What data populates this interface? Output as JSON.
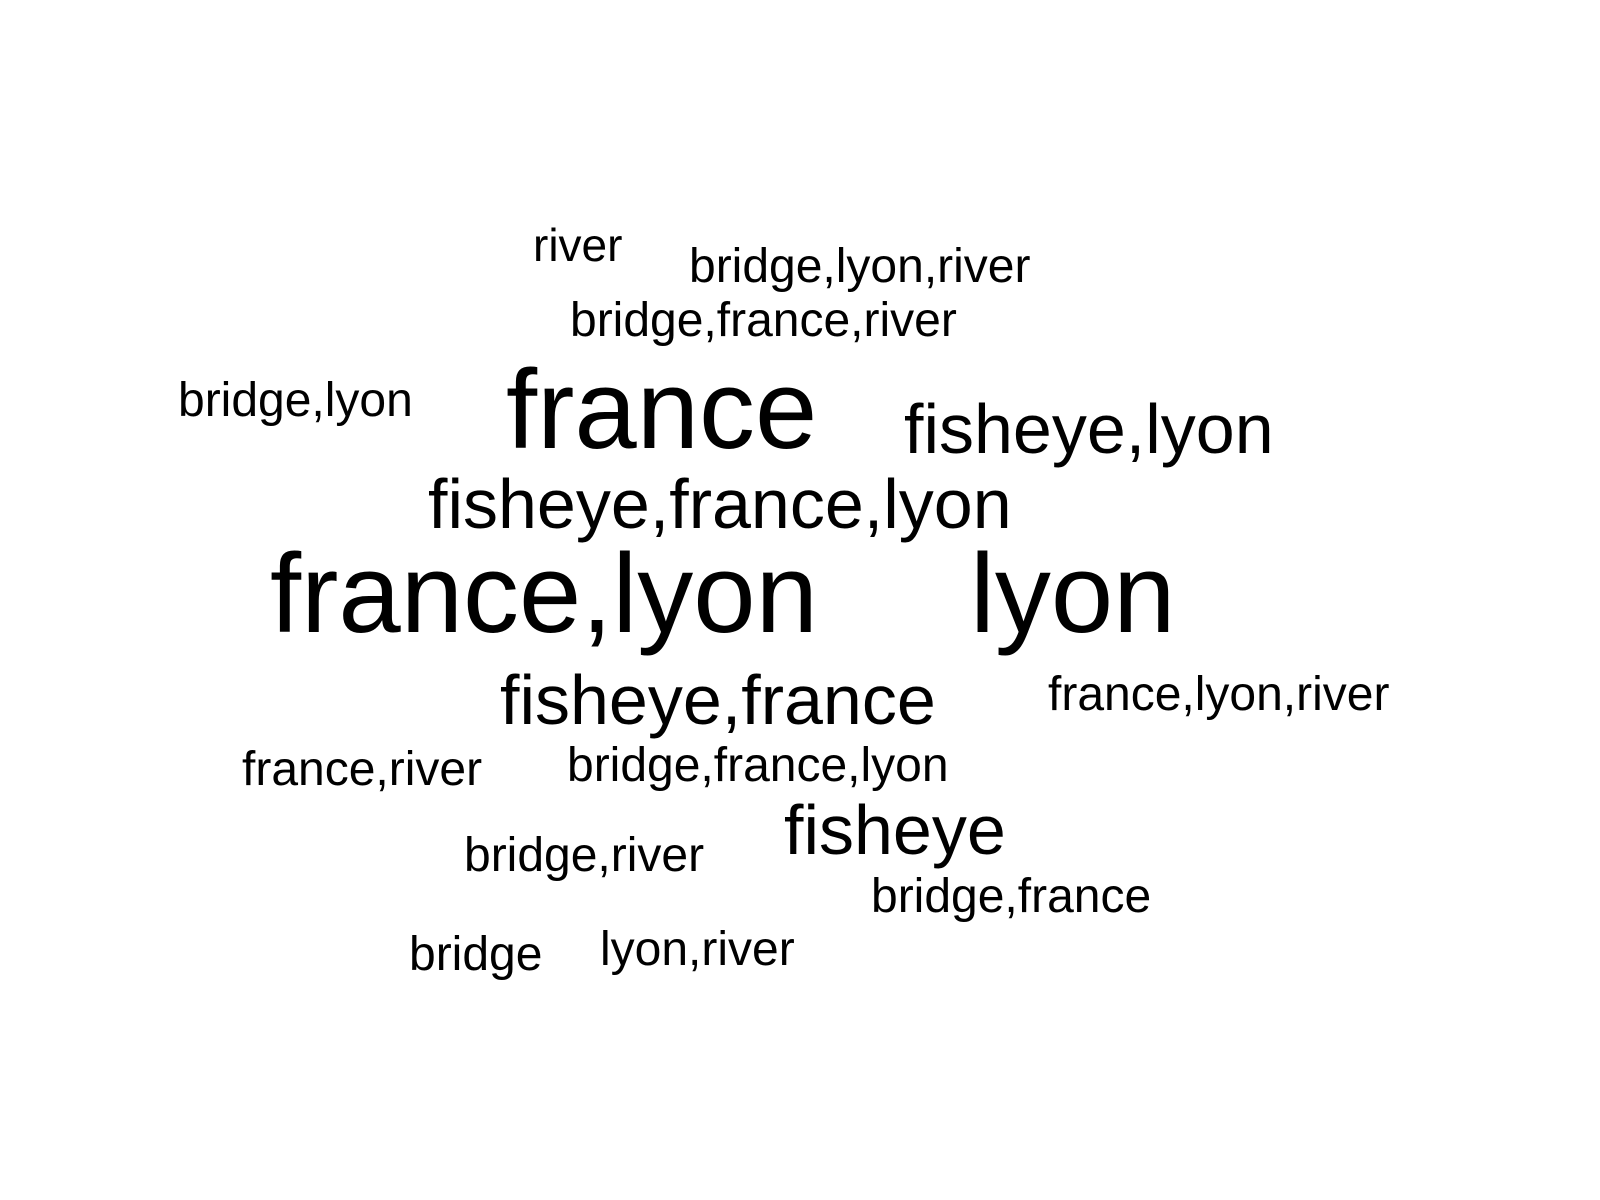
{
  "chart_data": {
    "type": "wordcloud",
    "text_color": "#000000",
    "background_color": "#ffffff",
    "words": [
      {
        "text": "river",
        "weight": 1
      },
      {
        "text": "bridge,lyon,river",
        "weight": 1
      },
      {
        "text": "bridge,france,river",
        "weight": 1
      },
      {
        "text": "bridge,lyon",
        "weight": 1
      },
      {
        "text": "france",
        "weight": 3
      },
      {
        "text": "fisheye,lyon",
        "weight": 2
      },
      {
        "text": "fisheye,france,lyon",
        "weight": 2
      },
      {
        "text": "france,lyon",
        "weight": 3
      },
      {
        "text": "lyon",
        "weight": 3
      },
      {
        "text": "fisheye,france",
        "weight": 2
      },
      {
        "text": "france,lyon,river",
        "weight": 1
      },
      {
        "text": "france,river",
        "weight": 1
      },
      {
        "text": "bridge,france,lyon",
        "weight": 1
      },
      {
        "text": "fisheye",
        "weight": 2
      },
      {
        "text": "bridge,river",
        "weight": 1
      },
      {
        "text": "bridge,france",
        "weight": 1
      },
      {
        "text": "bridge",
        "weight": 1
      },
      {
        "text": "lyon,river",
        "weight": 1
      }
    ]
  }
}
